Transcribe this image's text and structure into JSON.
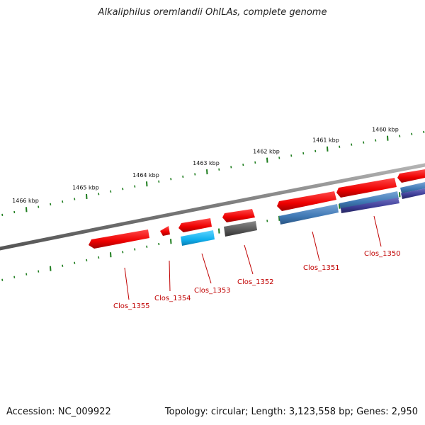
{
  "title": "Alkaliphilus oremlandii OhILAs, complete genome",
  "footer": {
    "accession": "Accession: NC_009922",
    "summary": "Topology: circular; Length: 3,123,558 bp; Genes: 2,950"
  },
  "colors": {
    "backbone": "#808080",
    "tick": "#1e7d1e",
    "gene_red": "#ff0000",
    "gene_label": "#c00000",
    "gene_cyan": "#12b4f0",
    "gene_gray": "#555555",
    "gene_steel": "#3f78b4",
    "gene_navy": "#3c3c96"
  },
  "ruler": {
    "labels": [
      "1466 kbp",
      "1465 kbp",
      "1464 kbp",
      "1463 kbp",
      "1462 kbp",
      "1461 kbp",
      "1460 kbp"
    ]
  },
  "genes": [
    {
      "label": "Clos_1355",
      "color": "gene_red"
    },
    {
      "label": "Clos_1354",
      "color": "gene_red"
    },
    {
      "label": "Clos_1353",
      "color": "gene_red"
    },
    {
      "label": "Clos_1352",
      "color": "gene_red"
    },
    {
      "label": "Clos_1351",
      "color": "gene_red"
    },
    {
      "label": "Clos_1350",
      "color": "gene_red"
    }
  ]
}
